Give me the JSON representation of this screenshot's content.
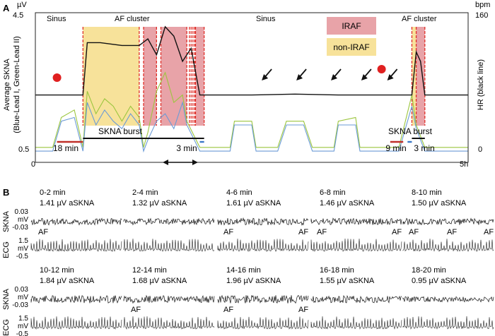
{
  "panel_a": {
    "label": "A",
    "y_left_unit": "µV",
    "y_right_unit": "bpm",
    "y_left_label_line1": "Average SKNA",
    "y_left_label_line2": "(Blue-Lead I, Green-Lead II)",
    "y_right_label": "HR (black line)",
    "y_left_max_label": "4.5",
    "y_left_min_label": "0.5",
    "y_right_max_label": "160",
    "y_right_min_label": "0",
    "x_start_label": "0",
    "x_end_label": "5h",
    "region_labels": [
      "Sinus",
      "AF cluster",
      "Sinus",
      "AF cluster"
    ],
    "legend": [
      {
        "label": "IRAF",
        "color": "#e8a3a8"
      },
      {
        "label": "non-IRAF",
        "color": "#f7e29a"
      }
    ],
    "skna_burst_1": "SKNA burst",
    "skna_burst_2": "SKNA burst",
    "dur_18min": "18 min",
    "dur_3min_a": "3 min",
    "dur_9min": "9 min",
    "dur_3min_b": "3 min"
  },
  "panel_b": {
    "label": "B",
    "rows": [
      {
        "skna_label": "SKNA",
        "skna_ticks": [
          "0.03",
          "mV",
          "-0.03"
        ],
        "ecg_label": "ECG",
        "ecg_ticks": [
          "1.5",
          "mV",
          "-0.5"
        ],
        "segments": [
          {
            "time": "0-2 min",
            "value": "1.41 µV aSKNA",
            "af": [
              "AF"
            ]
          },
          {
            "time": "2-4 min",
            "value": "1.32 µV aSKNA",
            "af": []
          },
          {
            "time": "4-6 min",
            "value": "1.61 µV aSKNA",
            "af": [
              "AF",
              "AF"
            ]
          },
          {
            "time": "6-8 min",
            "value": "1.46 µV aSKNA",
            "af": [
              "AF",
              "AF"
            ]
          },
          {
            "time": "8-10 min",
            "value": "1.50 µV aSKNA",
            "af": [
              "AF",
              "AF",
              "AF"
            ]
          }
        ]
      },
      {
        "skna_label": "SKNA",
        "skna_ticks": [
          "0.03",
          "mV",
          "-0.03"
        ],
        "ecg_label": "ECG",
        "ecg_ticks": [
          "1.5",
          "mV",
          "-0.5"
        ],
        "segments": [
          {
            "time": "10-12 min",
            "value": "1.84 µV aSKNA",
            "af": []
          },
          {
            "time": "12-14 min",
            "value": "1.68 µV aSKNA",
            "af": [
              "AF"
            ]
          },
          {
            "time": "14-16 min",
            "value": "1.96 µV aSKNA",
            "af": [
              "AF",
              "AF"
            ]
          },
          {
            "time": "16-18 min",
            "value": "1.55 µV aSKNA",
            "af": []
          },
          {
            "time": "18-20 min",
            "value": "0.95 µV aSKNA",
            "af": []
          }
        ]
      }
    ]
  },
  "colors": {
    "hr": "#111111",
    "lead1": "#6b9bd6",
    "lead2": "#9cc63f",
    "iraf": "#e8a3a8",
    "non_iraf": "#f7e29a",
    "onset_marker": "#e02020",
    "burst_red": "#c0302a",
    "burst_blue": "#3a78c8"
  },
  "icons": [
    "red-dot-icon",
    "arrow-icon",
    "double-arrow-icon"
  ],
  "chart_data": {
    "type": "line",
    "x_unit": "hours",
    "xlim": [
      0,
      5
    ],
    "ylim_left": [
      0.5,
      4.5
    ],
    "ylim_right": [
      0,
      160
    ],
    "x_ticks": [
      "0",
      "5h"
    ],
    "series": [
      {
        "name": "HR (black line)",
        "axis": "right",
        "x": [
          0.0,
          0.3,
          0.55,
          0.6,
          0.75,
          1.0,
          1.2,
          1.3,
          1.4,
          1.5,
          1.6,
          1.7,
          1.8,
          1.9,
          2.0,
          2.5,
          3.0,
          3.5,
          4.0,
          4.2,
          4.35,
          4.4,
          4.45,
          4.5,
          4.6,
          4.8,
          5.0
        ],
        "y": [
          72,
          72,
          72,
          128,
          128,
          125,
          125,
          132,
          115,
          145,
          135,
          108,
          122,
          72,
          72,
          72,
          73,
          72,
          72,
          72,
          72,
          118,
          108,
          72,
          72,
          72,
          72
        ]
      },
      {
        "name": "Lead I",
        "axis": "left",
        "x": [
          0.0,
          0.2,
          0.3,
          0.45,
          0.55,
          0.6,
          0.7,
          0.8,
          0.9,
          1.0,
          1.1,
          1.2,
          1.25,
          1.3,
          1.4,
          1.5,
          1.6,
          1.7,
          1.75,
          1.9,
          2.0,
          2.25,
          2.3,
          2.5,
          2.55,
          2.8,
          2.9,
          3.1,
          3.2,
          3.45,
          3.5,
          3.7,
          3.75,
          4.0,
          4.2,
          4.35,
          4.4,
          4.5,
          4.6,
          5.0
        ],
        "y": [
          0.8,
          0.8,
          1.6,
          1.7,
          0.8,
          2.1,
          1.5,
          1.9,
          1.6,
          1.4,
          1.8,
          1.5,
          0.8,
          1.1,
          1.6,
          1.8,
          1.4,
          2.1,
          1.5,
          0.8,
          0.8,
          0.8,
          1.5,
          1.5,
          0.8,
          0.8,
          1.5,
          1.5,
          0.8,
          0.8,
          1.5,
          1.5,
          0.8,
          0.8,
          0.8,
          2.0,
          1.4,
          0.8,
          0.8,
          0.8
        ]
      },
      {
        "name": "Lead II",
        "axis": "left",
        "x": [
          0.0,
          0.2,
          0.3,
          0.45,
          0.55,
          0.6,
          0.7,
          0.8,
          0.9,
          1.0,
          1.1,
          1.2,
          1.25,
          1.3,
          1.4,
          1.5,
          1.6,
          1.7,
          1.75,
          1.9,
          2.0,
          2.25,
          2.3,
          2.5,
          2.55,
          2.8,
          2.9,
          3.1,
          3.2,
          3.45,
          3.5,
          3.7,
          3.75,
          4.0,
          4.2,
          4.35,
          4.4,
          4.5,
          4.6,
          5.0
        ],
        "y": [
          0.9,
          0.9,
          1.7,
          1.9,
          0.9,
          2.4,
          1.8,
          2.2,
          2.0,
          1.6,
          2.0,
          1.7,
          0.9,
          1.3,
          2.4,
          2.9,
          2.1,
          2.3,
          1.6,
          0.9,
          0.9,
          0.9,
          1.6,
          1.6,
          0.9,
          0.9,
          1.6,
          1.6,
          0.9,
          0.9,
          1.6,
          1.7,
          0.9,
          0.9,
          0.9,
          2.3,
          1.5,
          0.9,
          0.9,
          0.9
        ]
      }
    ],
    "regions": [
      {
        "type": "non-IRAF",
        "x": [
          0.55,
          1.2
        ]
      },
      {
        "type": "IRAF",
        "x": [
          1.25,
          1.4
        ]
      },
      {
        "type": "IRAF",
        "x": [
          1.45,
          1.75
        ]
      },
      {
        "type": "IRAF",
        "x": [
          1.85,
          1.95
        ]
      },
      {
        "type": "IRAF",
        "x": [
          4.4,
          4.5
        ]
      },
      {
        "type": "non-IRAF",
        "x": [
          4.35,
          4.4
        ]
      }
    ],
    "af_onsets": [
      0.55,
      1.2,
      1.25,
      1.4,
      1.45,
      1.75,
      1.78,
      1.8,
      1.82,
      1.84,
      1.85,
      1.95,
      4.35,
      4.4,
      4.5
    ],
    "onset_markers": [
      0.25,
      4.0
    ],
    "arrows": [
      2.55,
      2.95,
      3.35,
      3.7,
      4.0
    ],
    "skna_bursts": [
      {
        "label": "SKNA burst",
        "x": [
          0.55,
          1.95
        ]
      },
      {
        "label": "SKNA burst",
        "x": [
          4.35,
          4.5
        ]
      }
    ],
    "durations": [
      {
        "label": "18 min",
        "x": [
          0.25,
          0.55
        ],
        "color": "red"
      },
      {
        "label": "3 min",
        "x": [
          1.9,
          1.95
        ],
        "color": "blue"
      },
      {
        "label": "9 min",
        "x": [
          4.1,
          4.25
        ],
        "color": "red"
      },
      {
        "label": "3 min",
        "x": [
          4.3,
          4.35
        ],
        "color": "blue"
      }
    ],
    "zoom_window_hours": [
      1.6,
      1.95
    ]
  }
}
